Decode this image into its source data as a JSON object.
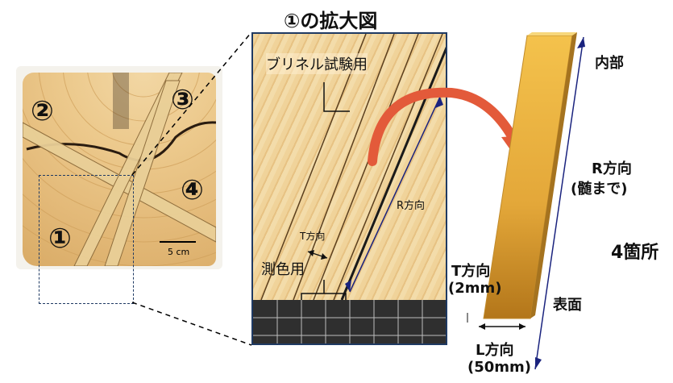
{
  "title": "①の拡大図",
  "left_photo": {
    "sections": [
      "②",
      "③",
      "④",
      "①"
    ],
    "scale_label": "5 cm"
  },
  "zoom": {
    "brinell_label": "ブリネル試験用",
    "r_direction_label": "R方向",
    "t_direction_label": "T方向",
    "color_label": "測色用"
  },
  "specimen": {
    "inner_label": "内部",
    "r_label": "R方向",
    "r_sub": "(髄まで)",
    "count_label": "4箇所",
    "surface_label": "表面",
    "t_label": "T方向",
    "t_sub": "(2mm)",
    "l_label": "L方向",
    "l_sub": "(50mm)"
  },
  "colors": {
    "frame": "#1f3a63",
    "arrow": "#e35a3a",
    "specimen_top": "#f4c24c",
    "specimen_bottom": "#b3761a"
  }
}
